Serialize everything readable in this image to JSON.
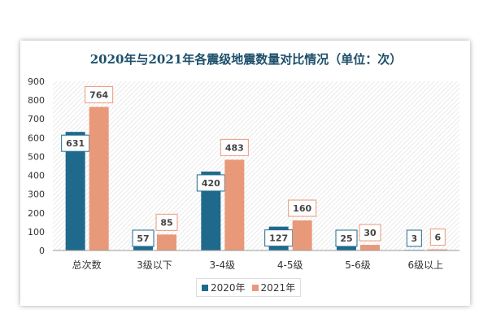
{
  "chart_data": {
    "type": "bar",
    "title": "2020年与2021年各震级地震数量对比情况（单位：次）",
    "categories": [
      "总次数",
      "3级以下",
      "3-4级",
      "4-5级",
      "5-6级",
      "6级以上"
    ],
    "series": [
      {
        "name": "2020年",
        "color": "#1f6a8c",
        "values": [
          631,
          57,
          420,
          127,
          25,
          3
        ]
      },
      {
        "name": "2021年",
        "color": "#e8997a",
        "values": [
          764,
          85,
          483,
          160,
          30,
          6
        ]
      }
    ],
    "ylim": [
      0,
      900
    ],
    "yticks": [
      0,
      100,
      200,
      300,
      400,
      500,
      600,
      700,
      800,
      900
    ],
    "xlabel": "",
    "ylabel": "",
    "legend": "bottom"
  }
}
